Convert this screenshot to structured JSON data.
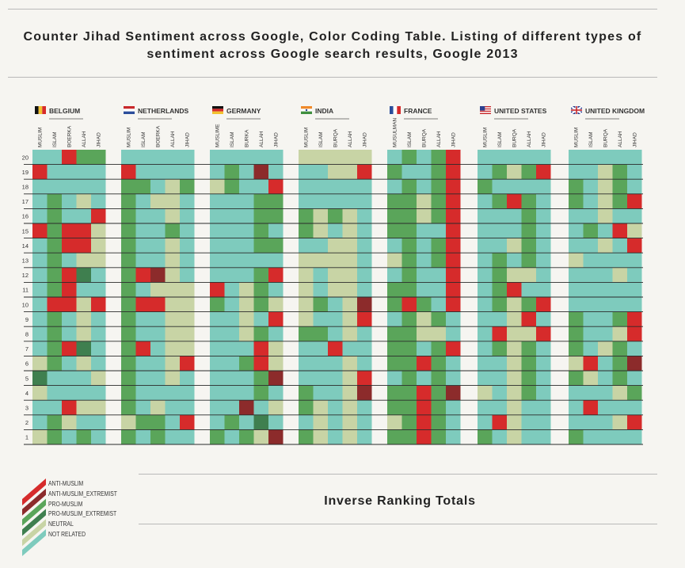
{
  "title": {
    "line1": "Counter Jihad Sentiment across Google, Color Coding Table. Listing of different types of",
    "line2": "sentiment across Google search results, Google 2013"
  },
  "footer_title": "Inverse Ranking Totals",
  "colors": {
    "A": "#d62b2b",
    "E": "#8c2b2b",
    "P": "#5aa55a",
    "X": "#3f7f4f",
    "N": "#c8d4a5",
    "R": "#7ecbbd"
  },
  "legend": [
    {
      "code": "A",
      "label": "ANTI-MUSLIM"
    },
    {
      "code": "E",
      "label": "ANTI-MUSLIM_EXTREMIST"
    },
    {
      "code": "P",
      "label": "PRO-MUSLIM"
    },
    {
      "code": "X",
      "label": "PRO-MUSLIM_EXTREMIST"
    },
    {
      "code": "N",
      "label": "NEUTRAL"
    },
    {
      "code": "R",
      "label": "NOT RELATED"
    }
  ],
  "chart_data": {
    "type": "heatmap",
    "title": "Counter Jihad Sentiment across Google, Color Coding Table. Listing of different types of sentiment across Google search results, Google 2013",
    "y_categories": [
      20,
      19,
      18,
      17,
      16,
      15,
      14,
      13,
      12,
      11,
      10,
      9,
      8,
      7,
      6,
      5,
      4,
      3,
      2,
      1
    ],
    "category_codes": {
      "A": "ANTI-MUSLIM",
      "E": "ANTI-MUSLIM_EXTREMIST",
      "P": "PRO-MUSLIM",
      "X": "PRO-MUSLIM_EXTREMIST",
      "N": "NEUTRAL",
      "R": "NOT RELATED"
    },
    "countries": [
      {
        "name": "BELGIUM",
        "flag": "belgium-flag",
        "columns": [
          "MUSLIM",
          "ISLAM",
          "BOERKA",
          "ALLAH",
          "JIHAD"
        ],
        "rows": [
          "RRAPP",
          "ARRRR",
          "RRRRR",
          "RPRNR",
          "RPRRA",
          "APAAN",
          "RPAAN",
          "RPRNN",
          "RPAXR",
          "RPARR",
          "RAANA",
          "RPRNR",
          "RPRNR",
          "RPAXR",
          "NPRNR",
          "XRRRN",
          "NRRRR",
          "RRANN",
          "RPNRR",
          "NPRPR"
        ]
      },
      {
        "name": "NETHERLANDS",
        "flag": "netherlands-flag",
        "columns": [
          "MUSLIM",
          "ISLAM",
          "BOERKA",
          "ALLAH",
          "JIHAD"
        ],
        "rows": [
          "RRRRR",
          "ARRRR",
          "PPRNP",
          "PRNNR",
          "PRRNR",
          "PRRPR",
          "PRRNR",
          "PRRNR",
          "PAENR",
          "PRNNN",
          "PAANN",
          "PRRNN",
          "PRRNN",
          "PARNN",
          "PRRNA",
          "PRRNR",
          "PRRRR",
          "PRNRR",
          "NPPRA",
          "PRPRR"
        ]
      },
      {
        "name": "GERMANY",
        "flag": "germany-flag",
        "columns": [
          "MUSLIME",
          "ISLAM",
          "BURKA",
          "ALLAH",
          "JIHAD"
        ],
        "rows": [
          "RRRRR",
          "RPRER",
          "NPRRA",
          "RRRPP",
          "RRRPP",
          "RRRPR",
          "RRRPP",
          "RRRRR",
          "RRRPA",
          "ARNPR",
          "PRNPN",
          "RRNRA",
          "RRNPR",
          "RRRAN",
          "RRPAN",
          "RRRPE",
          "RRRPR",
          "RRERN",
          "RPRXR",
          "PRPNE"
        ]
      },
      {
        "name": "INDIA",
        "flag": "india-flag",
        "columns": [
          "MUSLIM",
          "ISLAM",
          "BURQA",
          "ALLAH",
          "JIHAD"
        ],
        "rows": [
          "NNNNN",
          "RRNNA",
          "RRRRR",
          "RRRRR",
          "PNPNR",
          "PNRNR",
          "RRNNR",
          "NNNNR",
          "NRNNR",
          "NRNNR",
          "NPRNE",
          "NRRNA",
          "PPRNR",
          "RRARR",
          "RRRNR",
          "RRRNA",
          "PRRNE",
          "PNRNR",
          "RNRNR",
          "PNRNR"
        ]
      },
      {
        "name": "FRANCE",
        "flag": "france-flag",
        "columns": [
          "MUSULMAN",
          "ISLAM",
          "BURQA",
          "ALLAH",
          "JIHAD"
        ],
        "rows": [
          "RPRPA",
          "PRRPA",
          "RPRPA",
          "PPNPA",
          "PPNPA",
          "PPRRA",
          "RPRPA",
          "NPRPA",
          "RPRRA",
          "PPRRA",
          "PAPRA",
          "RPNPR",
          "PPNNR",
          "PPRPA",
          "PPAPR",
          "RPRPR",
          "PPAPE",
          "PPAPR",
          "NPAPR",
          "PPAPR"
        ]
      },
      {
        "name": "UNITED STATES",
        "flag": "us-flag",
        "columns": [
          "MUSLIM",
          "ISLAM",
          "BURQA",
          "ALLAH",
          "JIHAD"
        ],
        "rows": [
          "RRRRR",
          "RPNPA",
          "PRRRR",
          "RPAPR",
          "RRRPR",
          "RRRPR",
          "RRNPR",
          "RPRPR",
          "RPNNR",
          "RPARR",
          "RPNPA",
          "RRNAR",
          "RANNA",
          "RPNPR",
          "RRNPR",
          "RRNPR",
          "NRNPR",
          "RRNRR",
          "RANRR",
          "PRNRR"
        ]
      },
      {
        "name": "UNITED KINGDOM",
        "flag": "uk-flag",
        "columns": [
          "MUSLIM",
          "ISLAM",
          "BURQA",
          "ALLAH",
          "JIHAD"
        ],
        "rows": [
          "RRRRR",
          "RRNPR",
          "PRNPR",
          "PRNPA",
          "RRNRR",
          "RPRAN",
          "RRNRA",
          "NRRRR",
          "RRRNR",
          "RRRRR",
          "RRRRR",
          "PRRPA",
          "PRRNA",
          "PRNPR",
          "NARPE",
          "PNRPR",
          "RRRNP",
          "RARRR",
          "RRRNA",
          "PRRRR"
        ]
      }
    ]
  }
}
